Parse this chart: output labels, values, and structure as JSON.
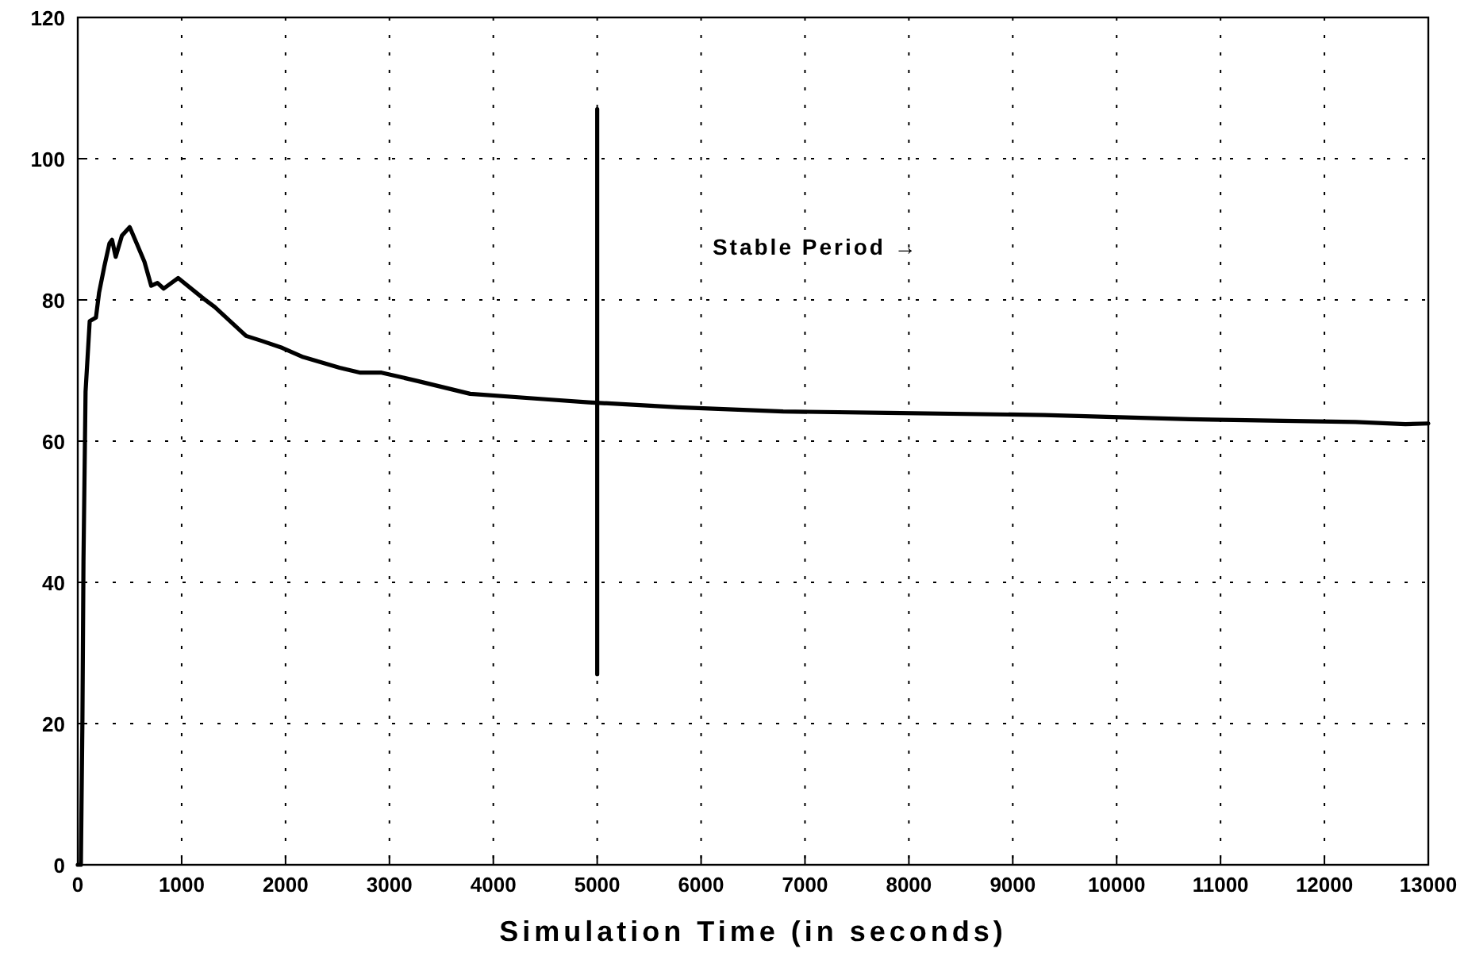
{
  "chart_data": {
    "type": "line",
    "xlabel": "Simulation Time (in seconds)",
    "xlim": [
      0,
      13000
    ],
    "xticks": [
      0,
      1000,
      2000,
      3000,
      4000,
      5000,
      6000,
      7000,
      8000,
      9000,
      10000,
      11000,
      12000,
      13000
    ],
    "ylim": [
      0,
      120
    ],
    "yticks": [
      0,
      20,
      40,
      60,
      80,
      100,
      120
    ],
    "grid": true,
    "line_style": "solid",
    "series": [
      {
        "color": "#000000",
        "x": [
          0,
          30,
          45,
          55,
          75,
          115,
          175,
          205,
          255,
          305,
          330,
          365,
          425,
          500,
          567,
          642,
          707,
          767,
          827,
          967,
          1218,
          1318,
          1620,
          1770,
          1970,
          2170,
          2520,
          2720,
          2924,
          3275,
          3777,
          4530,
          4917,
          5780,
          6790,
          7790,
          9300,
          10700,
          12300,
          12780,
          13000
        ],
        "values": [
          0,
          0,
          20.7,
          43,
          67,
          77,
          77.5,
          81,
          84.7,
          88,
          88.5,
          86.1,
          89.1,
          90.3,
          88,
          85.4,
          82,
          82.4,
          81.6,
          83.1,
          80.1,
          79,
          74.9,
          74.2,
          73.2,
          71.9,
          70.4,
          69.7,
          69.7,
          68.5,
          66.7,
          65.9,
          65.5,
          64.8,
          64.2,
          64,
          63.7,
          63.1,
          62.7,
          62.4,
          62.5
        ]
      },
      {
        "color": "#000000",
        "x": [
          5000,
          5000
        ],
        "values": [
          27,
          107
        ]
      }
    ],
    "annotations": [
      "Stable Period →"
    ]
  }
}
